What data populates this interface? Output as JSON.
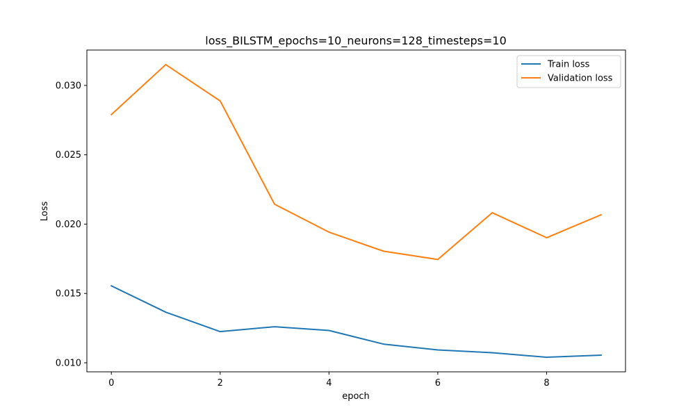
{
  "chart_data": {
    "type": "line",
    "title": "loss_BILSTM_epochs=10_neurons=128_timesteps=10",
    "xlabel": "epoch",
    "ylabel": "Loss",
    "x": [
      0,
      1,
      2,
      3,
      4,
      5,
      6,
      7,
      8,
      9
    ],
    "xlim": [
      -0.45,
      9.45
    ],
    "ylim": [
      0.00935,
      0.03255
    ],
    "xticks": [
      0,
      2,
      4,
      6,
      8
    ],
    "xtick_labels": [
      "0",
      "2",
      "4",
      "6",
      "8"
    ],
    "yticks": [
      0.01,
      0.015,
      0.02,
      0.025,
      0.03
    ],
    "ytick_labels": [
      "0.010",
      "0.015",
      "0.020",
      "0.025",
      "0.030"
    ],
    "grid": false,
    "legend_position": "top-right",
    "series": [
      {
        "name": "Train loss",
        "color": "#1f77b4",
        "values": [
          0.01555,
          0.01365,
          0.01225,
          0.0126,
          0.01233,
          0.01135,
          0.01093,
          0.01073,
          0.0104,
          0.01055
        ]
      },
      {
        "name": "Validation loss",
        "color": "#ff7f0e",
        "values": [
          0.0279,
          0.0315,
          0.02888,
          0.02143,
          0.01942,
          0.01805,
          0.01745,
          0.02082,
          0.01902,
          0.02067
        ]
      }
    ]
  }
}
